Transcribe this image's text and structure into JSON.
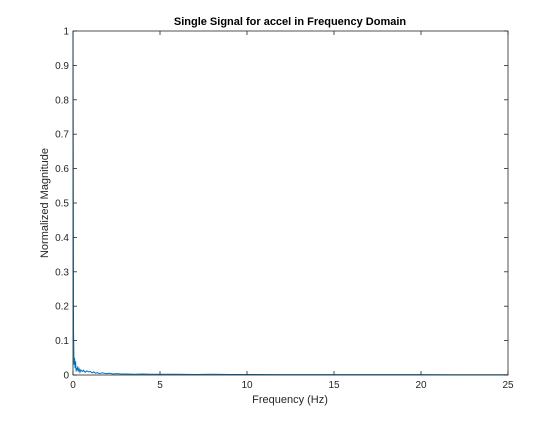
{
  "chart_data": {
    "type": "line",
    "title": "Single  Signal for accel in Frequency Domain",
    "xlabel": "Frequency (Hz)",
    "ylabel": "Normalized Magnitude",
    "xlim": [
      0,
      25
    ],
    "ylim": [
      0,
      1
    ],
    "xticks": [
      "0",
      "5",
      "10",
      "15",
      "20",
      "25"
    ],
    "yticks": [
      "0",
      "0.1",
      "0.2",
      "0.3",
      "0.4",
      "0.5",
      "0.6",
      "0.7",
      "0.8",
      "0.9",
      "1"
    ],
    "grid": false,
    "series": [
      {
        "color": "#0072BD",
        "x": [
          0,
          0.03,
          0.06,
          0.09,
          0.12,
          0.15,
          0.18,
          0.21,
          0.24,
          0.27,
          0.3,
          0.35,
          0.4,
          0.45,
          0.5,
          0.55,
          0.6,
          0.7,
          0.8,
          0.9,
          1.0,
          1.1,
          1.2,
          1.3,
          1.4,
          1.5,
          1.7,
          1.9,
          2.1,
          2.3,
          2.5,
          2.8,
          3.1,
          3.5,
          4.0,
          4.5,
          5.0,
          6.0,
          7.0,
          8.0,
          9.0,
          10.0,
          12.0,
          14.0,
          16.0,
          18.0,
          20.0,
          22.0,
          24.0,
          25.0
        ],
        "y": [
          1.0,
          0.13,
          0.03,
          0.05,
          0.02,
          0.04,
          0.01,
          0.02,
          0.015,
          0.025,
          0.01,
          0.018,
          0.008,
          0.015,
          0.012,
          0.01,
          0.014,
          0.008,
          0.012,
          0.009,
          0.01,
          0.006,
          0.009,
          0.005,
          0.007,
          0.004,
          0.006,
          0.004,
          0.005,
          0.003,
          0.004,
          0.003,
          0.003,
          0.002,
          0.003,
          0.002,
          0.002,
          0.002,
          0.0015,
          0.002,
          0.0015,
          0.0015,
          0.001,
          0.0012,
          0.001,
          0.001,
          0.001,
          0.0008,
          0.0008,
          0.0008
        ]
      }
    ]
  }
}
